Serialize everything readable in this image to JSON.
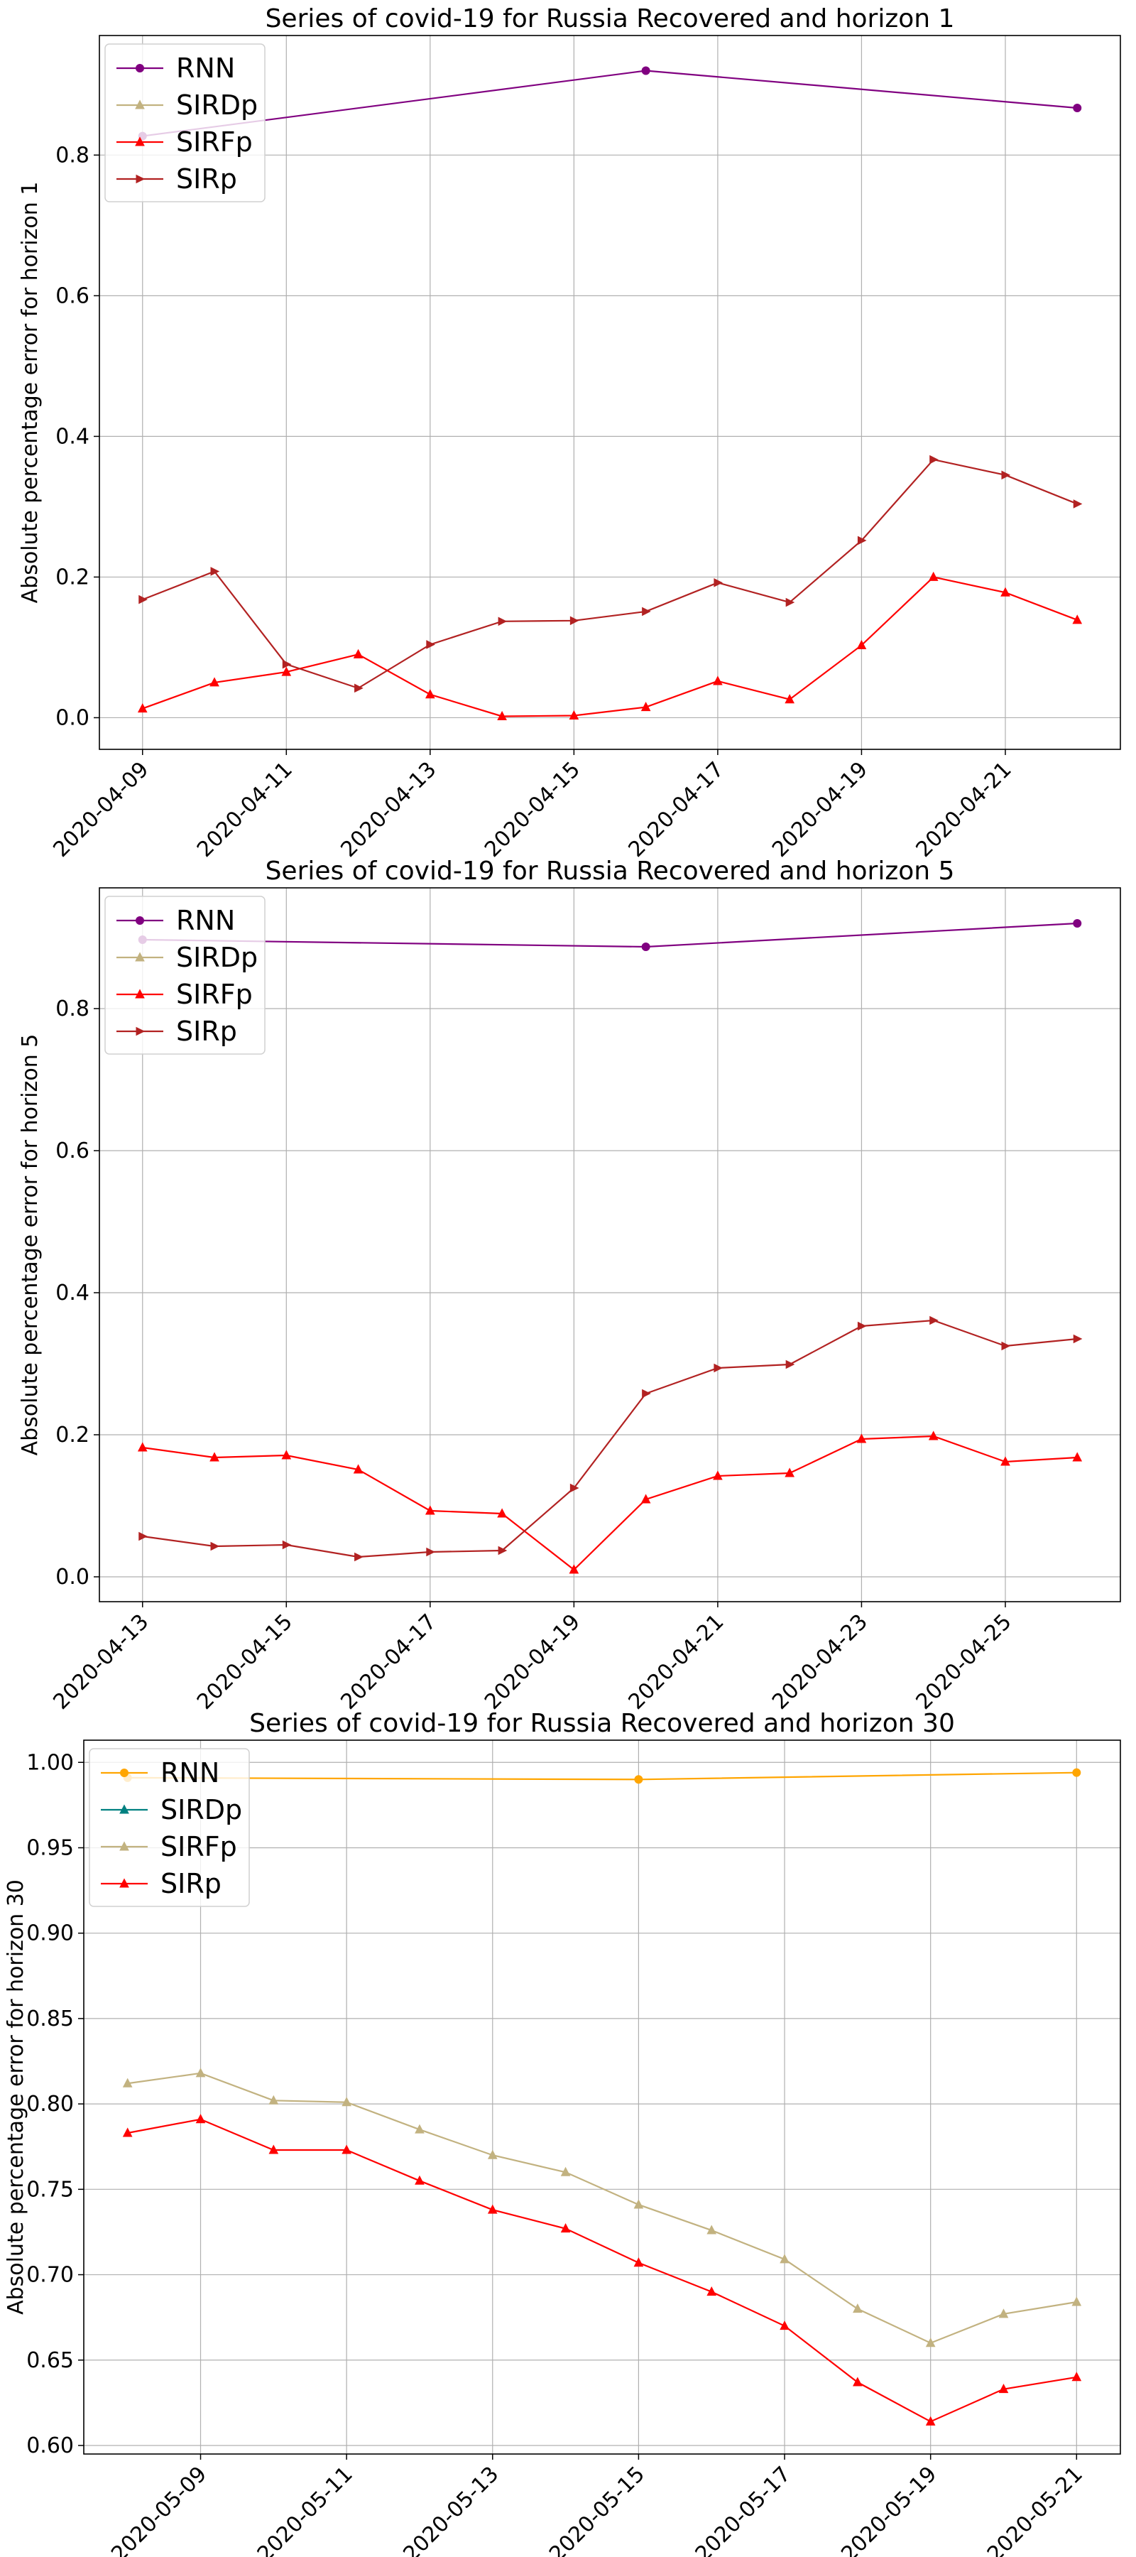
{
  "chart_data": [
    {
      "type": "line",
      "title": "Series of covid-19 for Russia Recovered and horizon 1",
      "xlabel": "",
      "ylabel": "Absolute percentage error for horizon 1",
      "x_start": "2020-04-09",
      "xticks": [
        "2020-04-09",
        "2020-04-11",
        "2020-04-13",
        "2020-04-15",
        "2020-04-17",
        "2020-04-19",
        "2020-04-21"
      ],
      "yticks": [
        "0.0",
        "0.2",
        "0.4",
        "0.6",
        "0.8"
      ],
      "ylim": [
        -0.045,
        0.97
      ],
      "xlim": [
        -0.6,
        13.6
      ],
      "grid": true,
      "legend_position": "top-left",
      "series": [
        {
          "name": "RNN",
          "color": "#800080",
          "marker": "circle",
          "x": [
            0,
            7,
            13
          ],
          "values": [
            0.827,
            0.92,
            0.867
          ]
        },
        {
          "name": "SIRDp",
          "color": "#c2b280",
          "marker": "triangle-up",
          "x": [],
          "values": []
        },
        {
          "name": "SIRFp",
          "color": "#ff0000",
          "marker": "triangle-up",
          "x": [
            0,
            1,
            2,
            3,
            4,
            5,
            6,
            7,
            8,
            9,
            10,
            11,
            12,
            13
          ],
          "values": [
            0.013,
            0.05,
            0.065,
            0.09,
            0.033,
            0.002,
            0.003,
            0.015,
            0.052,
            0.026,
            0.103,
            0.2,
            0.178,
            0.139
          ]
        },
        {
          "name": "SIRp",
          "color": "#b22222",
          "marker": "triangle-right",
          "x": [
            0,
            1,
            2,
            3,
            4,
            5,
            6,
            7,
            8,
            9,
            10,
            11,
            12,
            13
          ],
          "values": [
            0.168,
            0.208,
            0.076,
            0.042,
            0.104,
            0.137,
            0.138,
            0.151,
            0.192,
            0.164,
            0.252,
            0.367,
            0.345,
            0.304
          ]
        }
      ]
    },
    {
      "type": "line",
      "title": "Series of covid-19 for Russia Recovered and horizon 5",
      "xlabel": "",
      "ylabel": "Absolute percentage error for horizon 5",
      "x_start": "2020-04-13",
      "xticks": [
        "2020-04-13",
        "2020-04-15",
        "2020-04-17",
        "2020-04-19",
        "2020-04-21",
        "2020-04-23",
        "2020-04-25"
      ],
      "yticks": [
        "0.0",
        "0.2",
        "0.4",
        "0.6",
        "0.8"
      ],
      "ylim": [
        -0.035,
        0.97
      ],
      "xlim": [
        -0.6,
        13.6
      ],
      "grid": true,
      "legend_position": "top-left",
      "series": [
        {
          "name": "RNN",
          "color": "#800080",
          "marker": "circle",
          "x": [
            0,
            7,
            13
          ],
          "values": [
            0.897,
            0.887,
            0.92
          ]
        },
        {
          "name": "SIRDp",
          "color": "#c2b280",
          "marker": "triangle-up",
          "x": [],
          "values": []
        },
        {
          "name": "SIRFp",
          "color": "#ff0000",
          "marker": "triangle-up",
          "x": [
            0,
            1,
            2,
            3,
            4,
            5,
            6,
            7,
            8,
            9,
            10,
            11,
            12,
            13
          ],
          "values": [
            0.182,
            0.168,
            0.171,
            0.151,
            0.093,
            0.089,
            0.01,
            0.109,
            0.142,
            0.146,
            0.194,
            0.198,
            0.162,
            0.168
          ]
        },
        {
          "name": "SIRp",
          "color": "#b22222",
          "marker": "triangle-right",
          "x": [
            0,
            1,
            2,
            3,
            4,
            5,
            6,
            7,
            8,
            9,
            10,
            11,
            12,
            13
          ],
          "values": [
            0.057,
            0.043,
            0.045,
            0.028,
            0.035,
            0.037,
            0.125,
            0.258,
            0.294,
            0.299,
            0.353,
            0.361,
            0.325,
            0.335
          ]
        }
      ]
    },
    {
      "type": "line",
      "title": "Series of covid-19 for Russia Recovered and horizon 30",
      "xlabel": "",
      "ylabel": "Absolute percentage error for horizon 30",
      "x_start": "2020-05-08",
      "xticks": [
        "2020-05-09",
        "2020-05-11",
        "2020-05-13",
        "2020-05-15",
        "2020-05-17",
        "2020-05-19",
        "2020-05-21"
      ],
      "yticks": [
        "0.60",
        "0.65",
        "0.70",
        "0.75",
        "0.80",
        "0.85",
        "0.90",
        "0.95",
        "1.00"
      ],
      "ylim": [
        0.595,
        1.013
      ],
      "xlim": [
        -0.6,
        13.6
      ],
      "grid": true,
      "legend_position": "top-left",
      "series": [
        {
          "name": "RNN",
          "color": "#ffa500",
          "marker": "circle",
          "x": [
            0,
            7,
            13
          ],
          "values": [
            0.991,
            0.99,
            0.994
          ]
        },
        {
          "name": "SIRDp",
          "color": "#008080",
          "marker": "triangle-up",
          "x": [],
          "values": []
        },
        {
          "name": "SIRFp",
          "color": "#c2b280",
          "marker": "triangle-up",
          "x": [
            0,
            1,
            2,
            3,
            4,
            5,
            6,
            7,
            8,
            9,
            10,
            11,
            12,
            13
          ],
          "values": [
            0.812,
            0.818,
            0.802,
            0.801,
            0.785,
            0.77,
            0.76,
            0.741,
            0.726,
            0.709,
            0.68,
            0.66,
            0.677,
            0.684
          ]
        },
        {
          "name": "SIRp",
          "color": "#ff0000",
          "marker": "triangle-up",
          "x": [
            0,
            1,
            2,
            3,
            4,
            5,
            6,
            7,
            8,
            9,
            10,
            11,
            12,
            13
          ],
          "values": [
            0.783,
            0.791,
            0.773,
            0.773,
            0.755,
            0.738,
            0.727,
            0.707,
            0.69,
            0.67,
            0.637,
            0.614,
            0.633,
            0.64
          ]
        }
      ]
    }
  ]
}
